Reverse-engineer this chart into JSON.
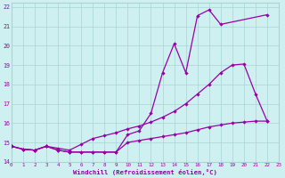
{
  "xlabel": "Windchill (Refroidissement éolien,°C)",
  "xlim": [
    0,
    23
  ],
  "ylim": [
    14,
    22.2
  ],
  "yticks": [
    14,
    15,
    16,
    17,
    18,
    19,
    20,
    21,
    22
  ],
  "xticks": [
    0,
    1,
    2,
    3,
    4,
    5,
    6,
    7,
    8,
    9,
    10,
    11,
    12,
    13,
    14,
    15,
    16,
    17,
    18,
    19,
    20,
    21,
    22,
    23
  ],
  "bg_color": "#cef0f0",
  "grid_color": "#aad4d4",
  "line_color": "#9900aa",
  "line1_x": [
    0,
    1,
    2,
    3,
    4,
    5,
    6,
    7,
    8,
    9,
    10,
    11,
    12,
    13,
    14,
    15,
    16,
    17,
    18,
    22
  ],
  "line1_y": [
    14.8,
    14.65,
    14.6,
    14.8,
    14.6,
    14.5,
    14.5,
    14.5,
    14.5,
    14.5,
    15.4,
    15.6,
    16.5,
    18.6,
    20.1,
    18.6,
    21.55,
    21.85,
    21.1,
    21.6
  ],
  "line2_x": [
    0,
    1,
    2,
    3,
    4,
    5,
    6,
    7,
    8,
    9,
    10,
    11,
    12,
    13,
    14,
    15,
    16,
    17,
    18,
    19,
    20,
    21,
    22
  ],
  "line2_y": [
    14.8,
    14.65,
    14.6,
    14.8,
    14.7,
    14.6,
    14.9,
    15.2,
    15.35,
    15.5,
    15.7,
    15.85,
    16.05,
    16.3,
    16.6,
    17.0,
    17.5,
    18.0,
    18.6,
    19.0,
    19.05,
    17.5,
    16.1
  ],
  "line3_x": [
    0,
    1,
    2,
    3,
    4,
    5,
    6,
    7,
    8,
    9,
    10,
    11,
    12,
    13,
    14,
    15,
    16,
    17,
    18,
    19,
    20,
    21,
    22
  ],
  "line3_y": [
    14.8,
    14.65,
    14.6,
    14.8,
    14.6,
    14.5,
    14.5,
    14.5,
    14.5,
    14.5,
    15.0,
    15.1,
    15.2,
    15.3,
    15.4,
    15.5,
    15.65,
    15.8,
    15.9,
    16.0,
    16.05,
    16.1,
    16.1
  ]
}
